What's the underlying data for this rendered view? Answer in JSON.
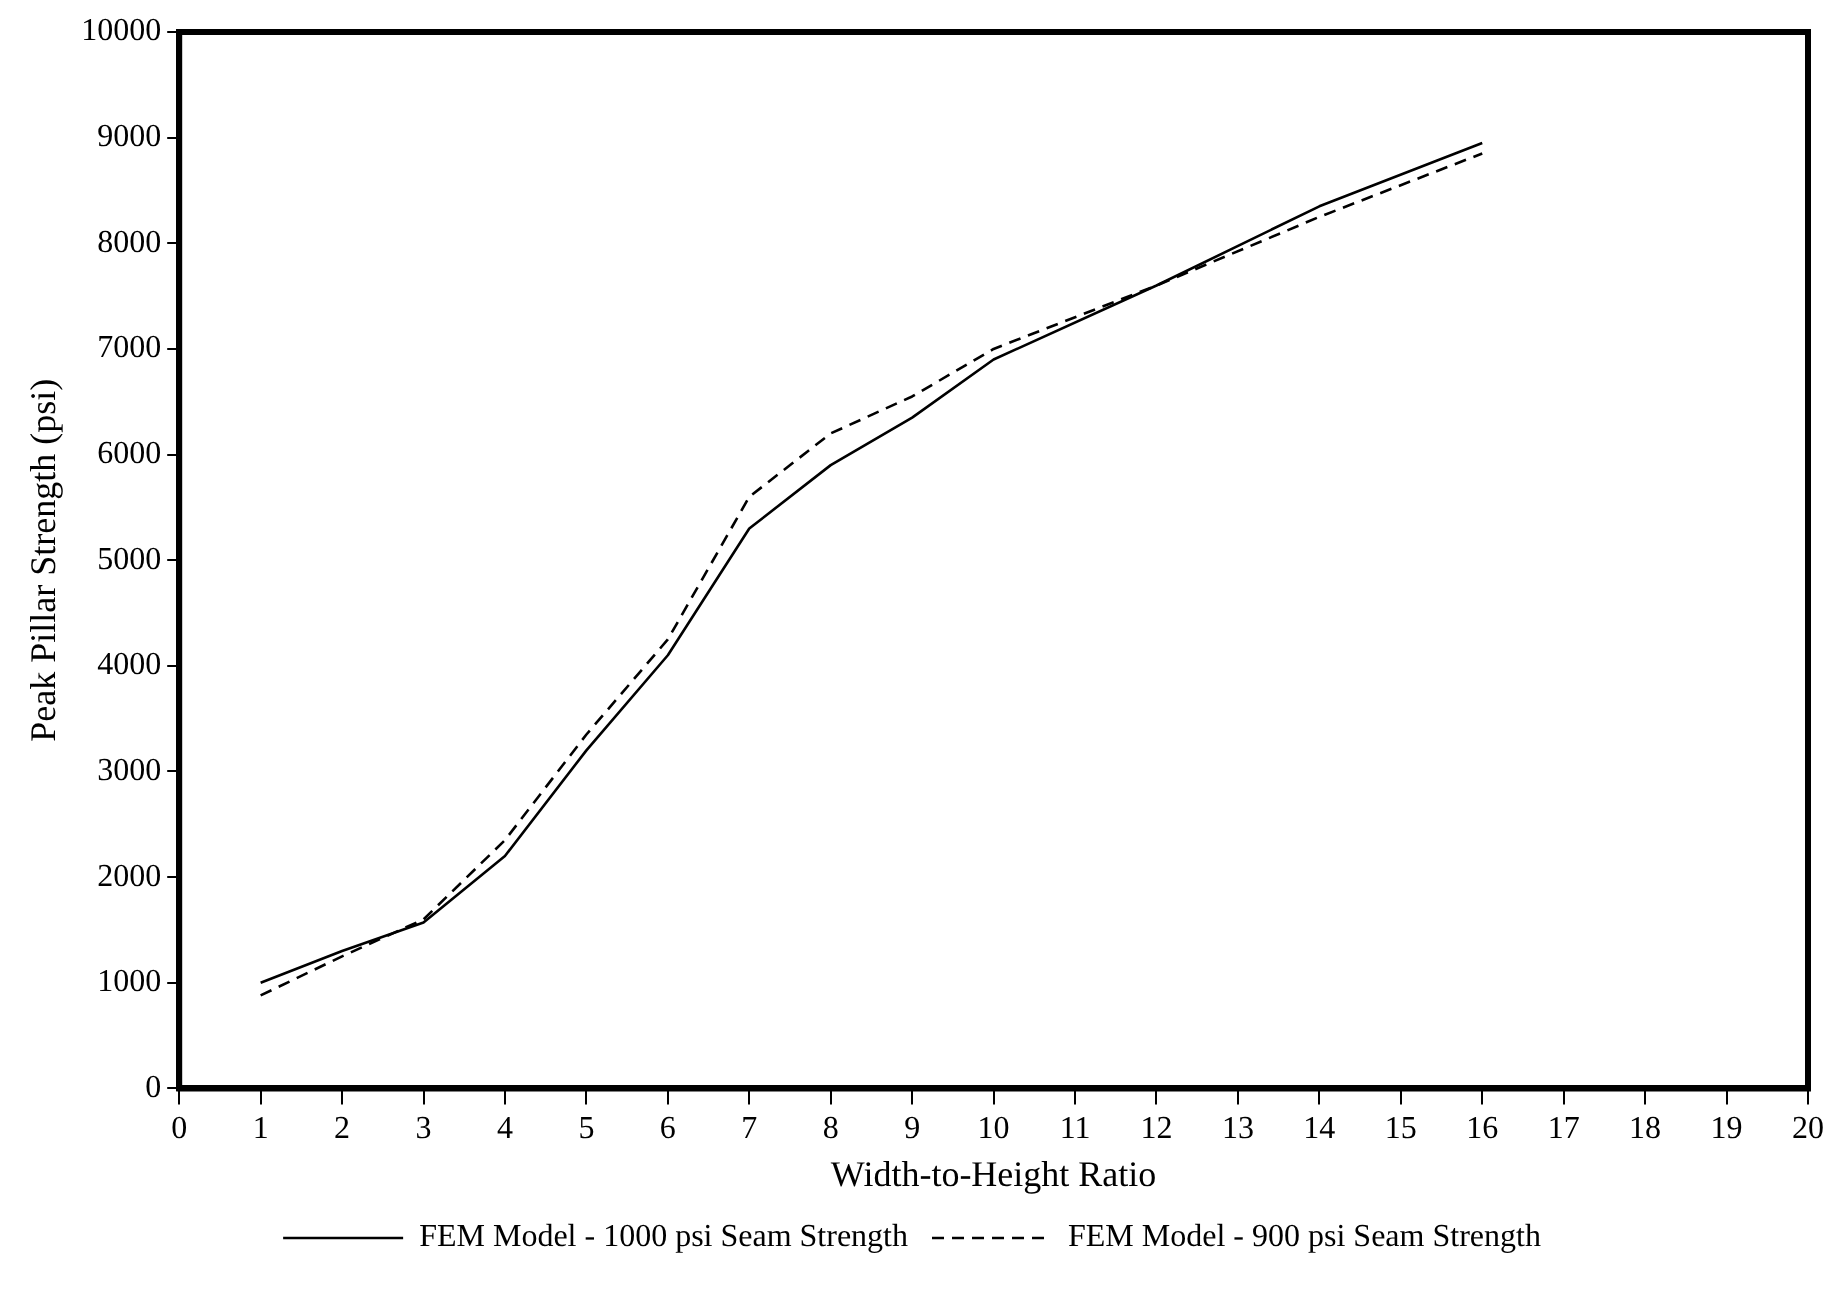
{
  "chart_data": {
    "type": "line",
    "xlabel": "Width-to-Height Ratio",
    "ylabel": "Peak Pillar Strength (psi)",
    "x": [
      1,
      2,
      3,
      4,
      5,
      6,
      7,
      8,
      9,
      10,
      12,
      14,
      16
    ],
    "series": [
      {
        "name": "FEM Model - 1000 psi Seam Strength",
        "color": "#000000",
        "line_style": "solid",
        "values": [
          1000,
          1300,
          1570,
          2200,
          3200,
          4100,
          5300,
          5900,
          6350,
          6900,
          7600,
          8350,
          8950
        ]
      },
      {
        "name": "FEM Model - 900 psi Seam Strength",
        "color": "#000000",
        "line_style": "dashed",
        "values": [
          880,
          1250,
          1600,
          2350,
          3350,
          4250,
          5600,
          6200,
          6550,
          7000,
          7600,
          8250,
          8850
        ]
      }
    ],
    "xlim": [
      0,
      20
    ],
    "xticks": [
      0,
      1,
      2,
      3,
      4,
      5,
      6,
      7,
      8,
      9,
      10,
      11,
      12,
      13,
      14,
      15,
      16,
      17,
      18,
      19,
      20
    ],
    "ylim": [
      0,
      10000
    ],
    "yticks": [
      0,
      1000,
      2000,
      3000,
      4000,
      5000,
      6000,
      7000,
      8000,
      9000,
      10000
    ],
    "grid": false,
    "legend": "bottom",
    "marker": "none"
  }
}
